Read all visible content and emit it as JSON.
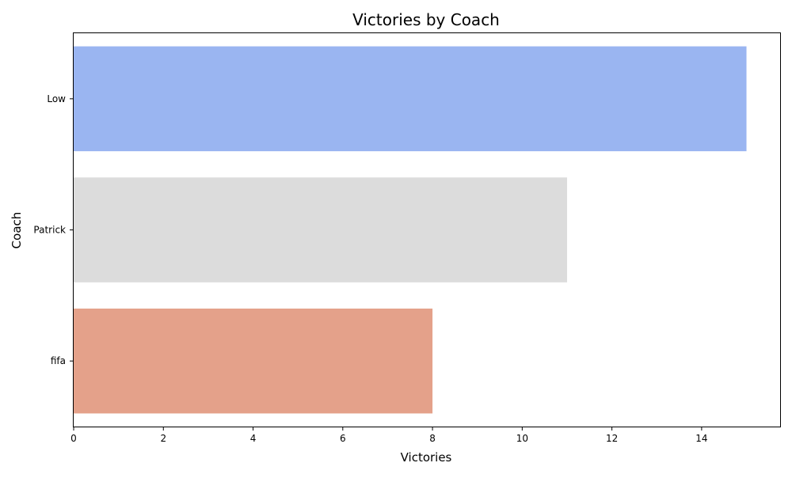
{
  "chart_data": {
    "type": "bar",
    "orientation": "horizontal",
    "title": "Victories by Coach",
    "xlabel": "Victories",
    "ylabel": "Coach",
    "categories": [
      "Low",
      "Patrick",
      "fifa"
    ],
    "values": [
      15,
      11,
      8
    ],
    "colors": [
      "#9ab5f1",
      "#dcdcdc",
      "#e4a18a"
    ],
    "xlim": [
      0,
      15.75
    ],
    "xticks": [
      0,
      2,
      4,
      6,
      8,
      10,
      12,
      14
    ],
    "grid": false,
    "legend": "none"
  }
}
